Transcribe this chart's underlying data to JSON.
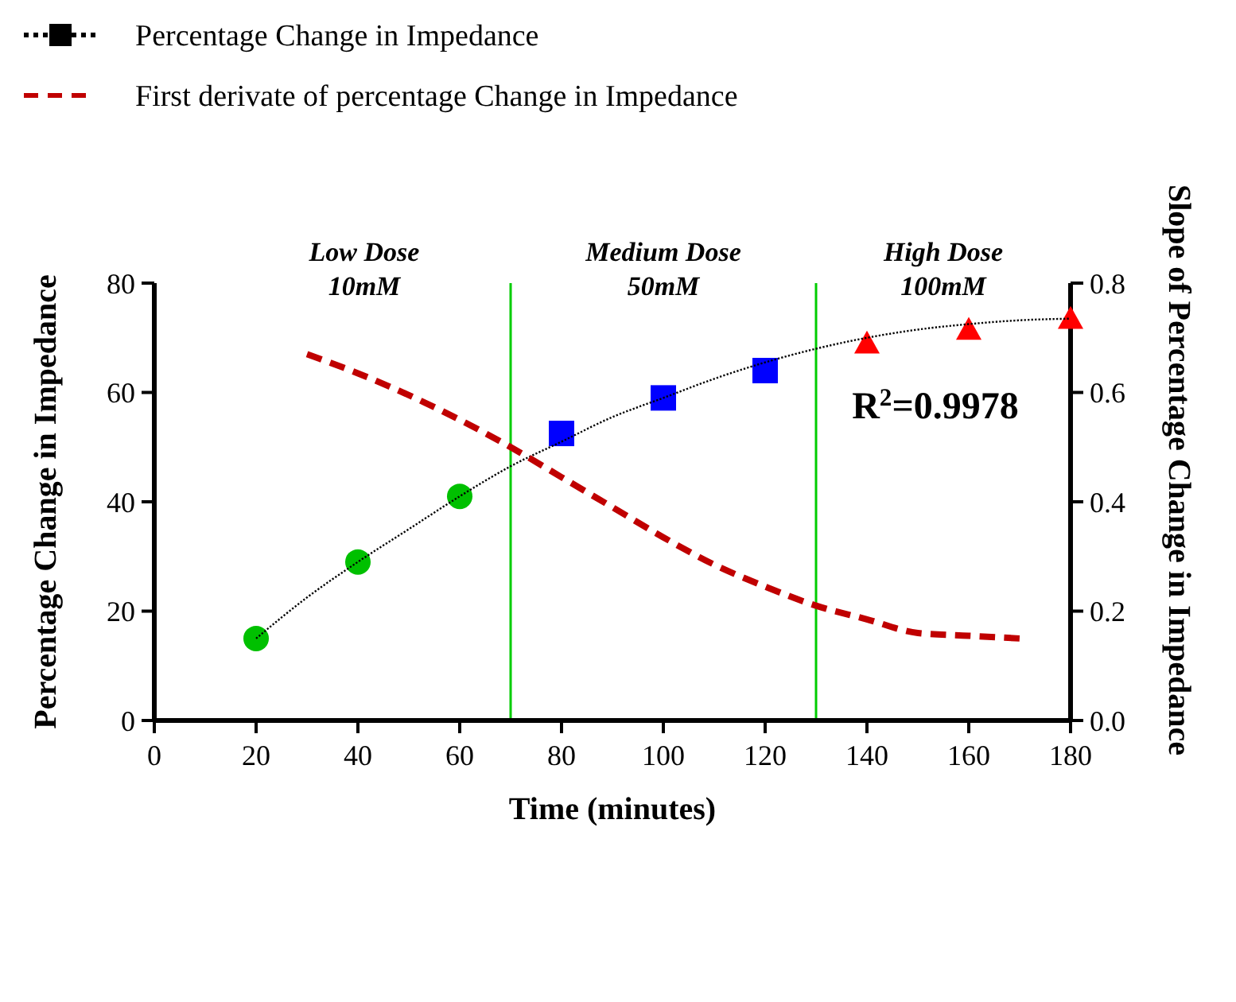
{
  "chart_data": {
    "type": "scatter",
    "xlabel": "Time (minutes)",
    "ylabel": "Percentage Change in Impedance",
    "y2label": "Slope of Percentage Change in Impedance",
    "xlim": [
      0,
      180
    ],
    "xticks": [
      0,
      20,
      40,
      60,
      80,
      100,
      120,
      140,
      160,
      180
    ],
    "ylim": [
      0,
      80
    ],
    "yticks": [
      0,
      20,
      40,
      60,
      80
    ],
    "y2lim": [
      0,
      0.8
    ],
    "y2ticks": [
      {
        "value": 0,
        "label": "0.0"
      },
      {
        "value": 0.2,
        "label": "0.2"
      },
      {
        "value": 0.4,
        "label": "0.4"
      },
      {
        "value": 0.6,
        "label": "0.6"
      },
      {
        "value": 0.8,
        "label": "0.8"
      }
    ],
    "grid": false,
    "legend": "top left",
    "series": [
      {
        "color": "#00c000",
        "marker": "circle",
        "x": [
          20,
          40,
          60
        ],
        "values": [
          15,
          29,
          41
        ]
      },
      {
        "color": "#0000ff",
        "marker": "square",
        "x": [
          80,
          100,
          120
        ],
        "values": [
          52.5,
          59,
          64
        ]
      },
      {
        "color": "#ff0000",
        "marker": "triangle",
        "x": [
          140,
          160,
          180
        ],
        "values": [
          69,
          71.5,
          73.5
        ]
      },
      {
        "type": "line",
        "name": "Percentage Change in Impedance",
        "color": "#000000",
        "line_style": "dotted",
        "marker": "none",
        "x": [
          20,
          30,
          40,
          50,
          60,
          70,
          80,
          90,
          100,
          110,
          120,
          130,
          140,
          150,
          160,
          170,
          180
        ],
        "values": [
          15,
          22.5,
          29,
          35,
          41,
          46.5,
          51,
          55.5,
          59,
          62.5,
          65.5,
          68,
          70,
          71.5,
          72.5,
          73.2,
          73.5
        ]
      },
      {
        "type": "line",
        "name": "First derivate of percentage Change in Impedance",
        "color": "#c00000",
        "line_style": "dashed",
        "marker": "none",
        "axis": "y2",
        "x": [
          30,
          40,
          50,
          60,
          70,
          80,
          90,
          100,
          110,
          120,
          130,
          140,
          150,
          160,
          170
        ],
        "values": [
          0.67,
          0.635,
          0.595,
          0.55,
          0.5,
          0.445,
          0.39,
          0.335,
          0.285,
          0.245,
          0.21,
          0.185,
          0.16,
          0.155,
          0.15
        ]
      }
    ],
    "ref_lines": [
      {
        "axis": "x",
        "value": 70,
        "color": "#00cc00"
      },
      {
        "axis": "x",
        "value": 130,
        "color": "#00cc00"
      }
    ],
    "annotations": [
      "Low Dose\n10mM",
      "Medium Dose\n50mM",
      "High Dose\n100mM",
      "R$^{2}$=0.9978"
    ]
  }
}
